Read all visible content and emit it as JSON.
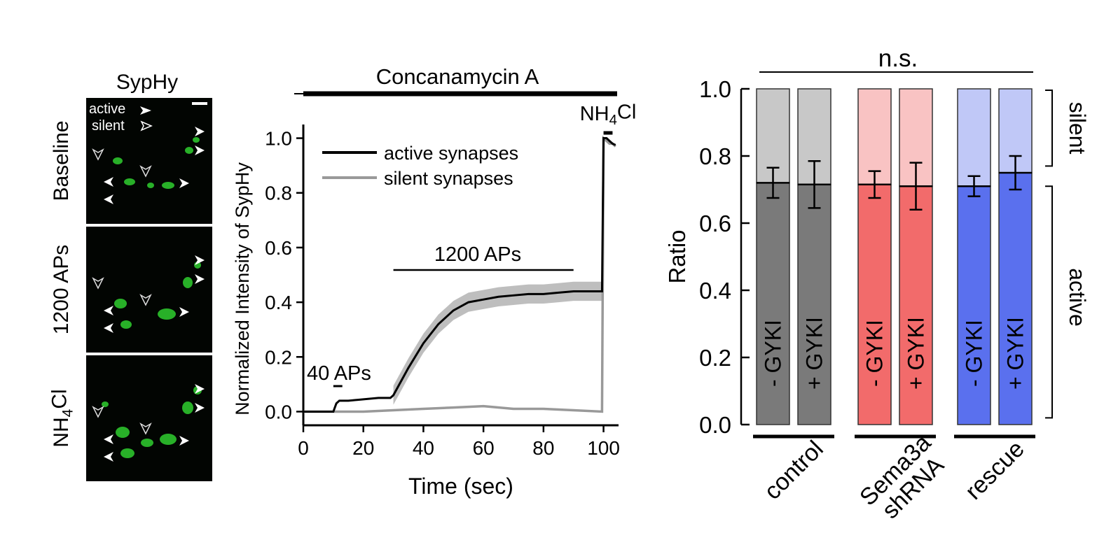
{
  "micrographs": {
    "title": "SypHy",
    "legend_active": "active",
    "legend_silent": "silent",
    "rows": [
      {
        "label_main": "Baseline",
        "label_sub": ""
      },
      {
        "label_main": "1200 APs",
        "label_sub": ""
      },
      {
        "label_main": "NH",
        "label_sub": "4",
        "label_tail": "Cl"
      }
    ],
    "colors": {
      "image_bg": "#020502",
      "signal": "#2fcf2f"
    }
  },
  "chart_data": [
    {
      "type": "line",
      "title": "",
      "xlabel": "Time (sec)",
      "ylabel": "Normalized Intensity of SypHy",
      "xlim": [
        0,
        105
      ],
      "ylim": [
        -0.05,
        1.05
      ],
      "xticks": [
        0,
        20,
        40,
        60,
        80,
        100
      ],
      "yticks": [
        0.0,
        0.2,
        0.4,
        0.6,
        0.8,
        1.0
      ],
      "ytick_labels": [
        "0.0",
        "0.2",
        "0.4",
        "0.6",
        "0.8",
        "1.0"
      ],
      "grid": false,
      "legend_position": "top-left",
      "series": [
        {
          "name": "active synapses",
          "color": "#000000",
          "x": [
            0,
            5,
            10,
            11,
            12,
            15,
            20,
            25,
            29,
            30,
            35,
            40,
            45,
            50,
            55,
            60,
            65,
            70,
            75,
            80,
            85,
            90,
            95,
            99.5,
            100,
            101,
            102,
            103,
            104
          ],
          "y": [
            0.0,
            0.0,
            0.0,
            0.03,
            0.04,
            0.04,
            0.045,
            0.05,
            0.05,
            0.06,
            0.16,
            0.25,
            0.32,
            0.37,
            0.4,
            0.41,
            0.42,
            0.425,
            0.43,
            0.43,
            0.435,
            0.44,
            0.44,
            0.44,
            1.0,
            1.0,
            0.99,
            0.98,
            0.975
          ]
        },
        {
          "name": "silent synapses",
          "color": "#999999",
          "x": [
            0,
            10,
            20,
            30,
            40,
            50,
            60,
            70,
            80,
            90,
            99.5,
            100,
            101,
            102,
            103,
            104
          ],
          "y": [
            0.0,
            0.0,
            0.0,
            0.005,
            0.01,
            0.015,
            0.02,
            0.01,
            0.01,
            0.005,
            0.0,
            1.0,
            0.99,
            0.98,
            0.98,
            0.97
          ]
        }
      ],
      "band": {
        "color": "#b3b3b3",
        "x_start": 30,
        "x_end": 100,
        "half_width": 0.035
      },
      "annotations": [
        {
          "text": "Concanamycin A",
          "x_start": 0,
          "x_end": 105,
          "y": 1.17
        },
        {
          "text": "NH",
          "sub": "4",
          "tail": "Cl",
          "x_start": 100,
          "x_end": 103,
          "y": 1.085
        },
        {
          "text": "1200 APs",
          "x_start": 30,
          "x_end": 90,
          "y": 0.52
        },
        {
          "text": "40 APs",
          "x_start": 10,
          "x_end": 13,
          "y": 0.09
        }
      ]
    },
    {
      "type": "bar",
      "title": "",
      "xlabel": "",
      "ylabel": "Ratio",
      "ylim": [
        0,
        1.0
      ],
      "yticks": [
        0.0,
        0.2,
        0.4,
        0.6,
        0.8,
        1.0
      ],
      "ytick_labels": [
        "0.0",
        "0.2",
        "0.4",
        "0.6",
        "0.8",
        "1.0"
      ],
      "grid": false,
      "stacked": true,
      "significance": "n.s.",
      "bracket_silent": "silent",
      "bracket_active": "active",
      "groups": [
        {
          "name": "control",
          "color_active": "#7a7a7a",
          "color_silent": "#c8c8c8",
          "bars": [
            {
              "label": "- GYKI",
              "active": 0.72,
              "error": 0.045
            },
            {
              "label": "+ GYKI",
              "active": 0.715,
              "error": 0.07
            }
          ]
        },
        {
          "name": "Sema3a shRNA",
          "color_active": "#f26b6b",
          "color_silent": "#f9c3c3",
          "bars": [
            {
              "label": "- GYKI",
              "active": 0.715,
              "error": 0.04
            },
            {
              "label": "+ GYKI",
              "active": 0.71,
              "error": 0.07
            }
          ]
        },
        {
          "name": "rescue",
          "color_active": "#5a70ee",
          "color_silent": "#c0c8f7",
          "bars": [
            {
              "label": "- GYKI",
              "active": 0.71,
              "error": 0.03
            },
            {
              "label": "+ GYKI",
              "active": 0.75,
              "error": 0.05
            }
          ]
        }
      ]
    }
  ]
}
